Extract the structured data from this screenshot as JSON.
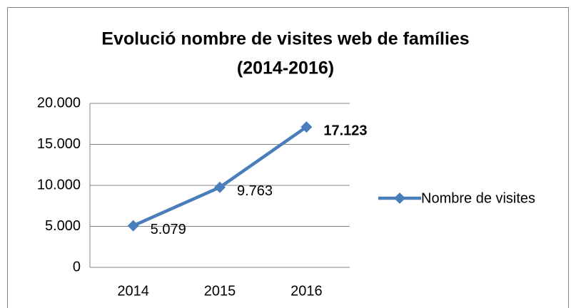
{
  "chart_data": {
    "type": "line",
    "title": [
      "Evolució nombre de visites web de famílies",
      "(2014-2016)"
    ],
    "categories": [
      "2014",
      "2015",
      "2016"
    ],
    "series": [
      {
        "name": "Nombre de visites",
        "color": "#4a7ebb",
        "values": [
          5079,
          9763,
          17123
        ],
        "value_labels": [
          "5.079",
          "9.763",
          "17.123"
        ],
        "value_label_bold": [
          false,
          false,
          true
        ]
      }
    ],
    "ylim": [
      0,
      20000
    ],
    "yticks": [
      0,
      {
        "value": 5000,
        "label": "5.000"
      },
      {
        "value": 10000,
        "label": "10.000"
      },
      {
        "value": 15000,
        "label": "15.000"
      },
      {
        "value": 20000,
        "label": "20.000"
      }
    ],
    "grid": true,
    "legend": "right",
    "marker": "diamond"
  }
}
